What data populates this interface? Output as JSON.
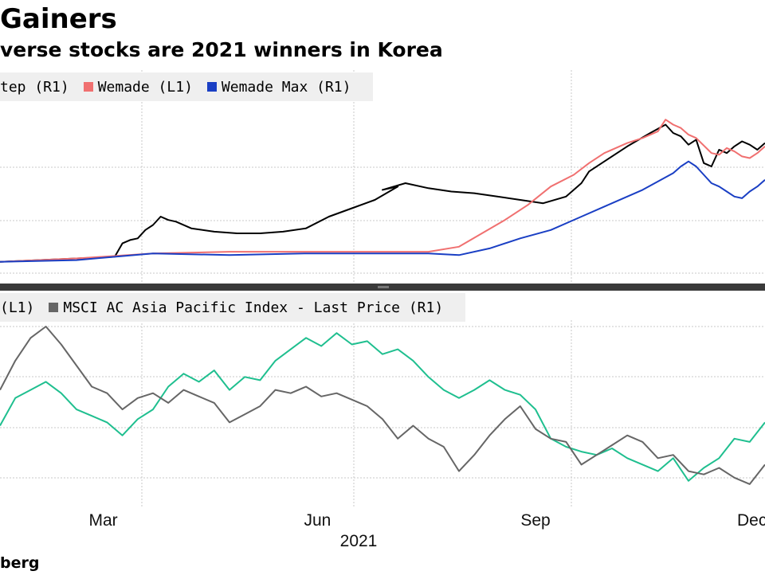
{
  "title": "Gainers",
  "subtitle": "verse stocks are 2021 winners in Korea",
  "source": "berg",
  "colors": {
    "netmarble": "#000000",
    "wemade": "#f07070",
    "wemade_max": "#1a3fc4",
    "teal": "#1fbf8f",
    "msci": "#666666",
    "grid": "#c8c8c8",
    "legend_bg": "#efefef"
  },
  "chart_data": [
    {
      "type": "line",
      "panel": "top",
      "legend": [
        {
          "label": "tep (R1)",
          "color": "#000000"
        },
        {
          "label": "Wemade (L1)",
          "color": "#f07070"
        },
        {
          "label": "Wemade Max (R1)",
          "color": "#1a3fc4"
        }
      ],
      "ylim": [
        0,
        100
      ],
      "x_range": [
        0,
        100
      ],
      "series": [
        {
          "name": "tep (R1)",
          "color": "#000000",
          "x": [
            0,
            5,
            10,
            15,
            16,
            17,
            18,
            19,
            20,
            21,
            22,
            23,
            25,
            28,
            31,
            34,
            37,
            40,
            43,
            46,
            49,
            52,
            50,
            53,
            56,
            59,
            62,
            65,
            68,
            71,
            74,
            76,
            77,
            79,
            82,
            85,
            87,
            88,
            89,
            90,
            91,
            92,
            93,
            94,
            95,
            96,
            97,
            98,
            99,
            100
          ],
          "y": [
            3,
            4,
            5,
            6,
            14,
            16,
            17,
            22,
            25,
            30,
            28,
            27,
            23,
            21,
            20,
            20,
            21,
            23,
            30,
            35,
            40,
            48,
            46,
            50,
            47,
            45,
            44,
            42,
            40,
            38,
            42,
            50,
            57,
            63,
            72,
            80,
            85,
            80,
            78,
            73,
            76,
            62,
            60,
            70,
            68,
            72,
            75,
            73,
            70,
            74
          ]
        },
        {
          "name": "Wemade (L1)",
          "color": "#f07070",
          "x": [
            0,
            10,
            20,
            30,
            40,
            50,
            56,
            60,
            63,
            66,
            69,
            72,
            75,
            77,
            79,
            82,
            84,
            86,
            87,
            88,
            89,
            90,
            91,
            93,
            94,
            95,
            96,
            97,
            98,
            99,
            100
          ],
          "y": [
            3,
            5,
            8,
            9,
            9,
            9,
            9,
            12,
            20,
            28,
            37,
            48,
            55,
            62,
            68,
            74,
            77,
            81,
            88,
            85,
            83,
            79,
            77,
            68,
            67,
            71,
            69,
            66,
            65,
            68,
            72
          ]
        },
        {
          "name": "Wemade Max (R1)",
          "color": "#1a3fc4",
          "x": [
            0,
            10,
            20,
            30,
            40,
            50,
            56,
            60,
            64,
            68,
            72,
            76,
            80,
            84,
            86,
            88,
            89,
            90,
            91,
            92,
            93,
            94,
            95,
            96,
            97,
            98,
            99,
            100
          ],
          "y": [
            3,
            4,
            8,
            7,
            8,
            8,
            8,
            7,
            11,
            17,
            22,
            30,
            38,
            46,
            51,
            56,
            60,
            63,
            60,
            55,
            50,
            48,
            45,
            42,
            41,
            45,
            48,
            52
          ]
        }
      ]
    },
    {
      "type": "line",
      "panel": "bottom",
      "legend": [
        {
          "label": "(L1)",
          "color": "#1fbf8f"
        },
        {
          "label": "MSCI AC Asia Pacific Index - Last Price (R1)",
          "color": "#666666"
        }
      ],
      "ylim": [
        0,
        100
      ],
      "x_range": [
        0,
        100
      ],
      "categories": [
        "Mar",
        "Jun",
        "Sep",
        "Dec"
      ],
      "category_x": [
        13.5,
        41.5,
        70,
        98.3
      ],
      "xlabel": "2021",
      "series": [
        {
          "name": "(L1)",
          "color": "#1fbf8f",
          "x": [
            0,
            2,
            4,
            6,
            8,
            10,
            12,
            14,
            16,
            18,
            20,
            22,
            24,
            26,
            28,
            30,
            32,
            34,
            36,
            38,
            40,
            42,
            44,
            46,
            48,
            50,
            52,
            54,
            56,
            58,
            60,
            62,
            64,
            66,
            68,
            70,
            72,
            74,
            76,
            78,
            80,
            82,
            84,
            86,
            88,
            90,
            92,
            94,
            96,
            98,
            100
          ],
          "y": [
            38,
            55,
            60,
            65,
            58,
            48,
            44,
            40,
            32,
            42,
            48,
            62,
            70,
            65,
            72,
            60,
            68,
            66,
            78,
            85,
            92,
            87,
            95,
            88,
            90,
            82,
            85,
            78,
            68,
            60,
            55,
            60,
            66,
            60,
            57,
            48,
            30,
            25,
            22,
            20,
            24,
            18,
            14,
            10,
            18,
            4,
            12,
            18,
            30,
            28,
            40
          ]
        },
        {
          "name": "MSCI AC Asia Pacific Index - Last Price (R1)",
          "color": "#666666",
          "x": [
            0,
            2,
            4,
            6,
            8,
            10,
            12,
            14,
            16,
            18,
            20,
            22,
            24,
            26,
            28,
            30,
            32,
            34,
            36,
            38,
            40,
            42,
            44,
            46,
            48,
            50,
            52,
            54,
            56,
            58,
            60,
            62,
            64,
            66,
            68,
            70,
            72,
            74,
            76,
            78,
            80,
            82,
            84,
            86,
            88,
            90,
            92,
            94,
            96,
            98,
            100
          ],
          "y": [
            60,
            78,
            92,
            99,
            88,
            75,
            62,
            58,
            48,
            55,
            58,
            52,
            60,
            56,
            52,
            40,
            45,
            50,
            60,
            58,
            62,
            56,
            58,
            54,
            50,
            42,
            30,
            38,
            30,
            25,
            10,
            20,
            32,
            42,
            50,
            36,
            30,
            28,
            14,
            20,
            26,
            32,
            28,
            18,
            20,
            10,
            8,
            12,
            6,
            2,
            14
          ]
        }
      ]
    }
  ]
}
